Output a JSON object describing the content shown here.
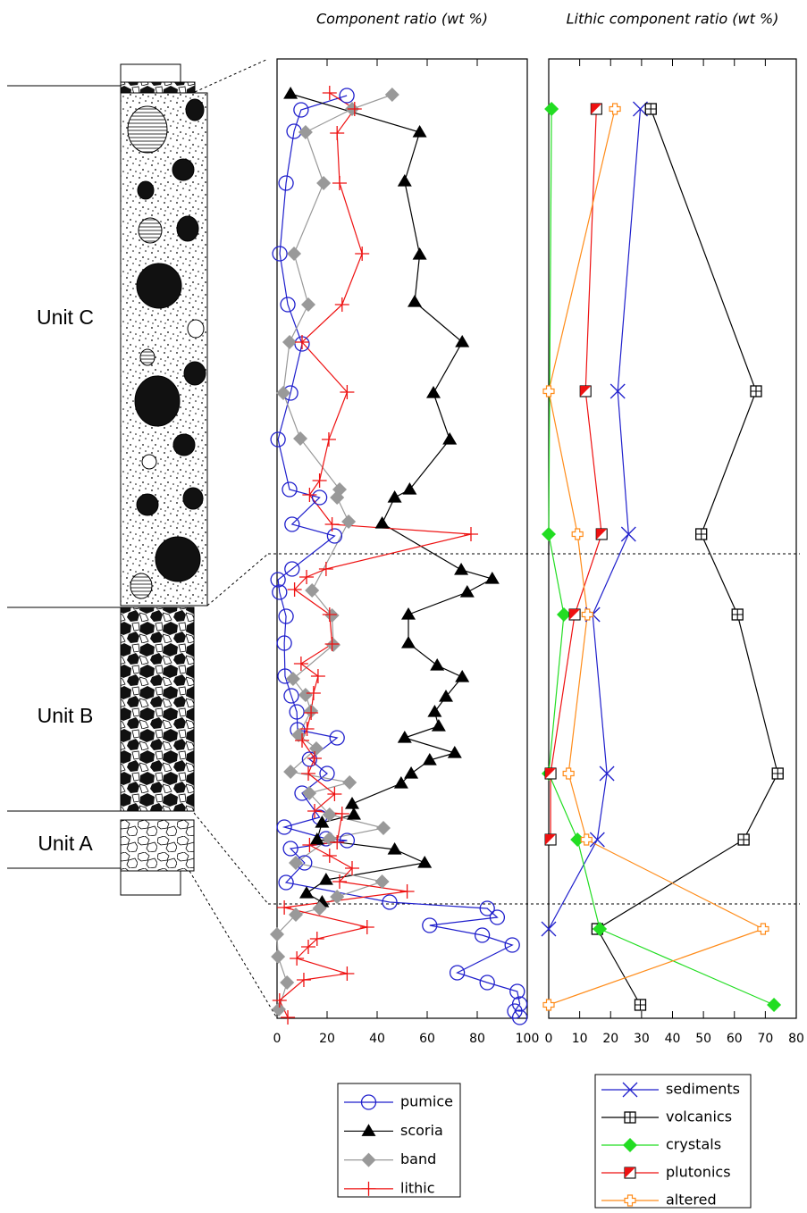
{
  "column": {
    "units": [
      "Unit C",
      "Unit B",
      "Unit A"
    ]
  },
  "chart_data": [
    {
      "type": "line",
      "title": "Component ratio (wt %)",
      "xlim": [
        0,
        100
      ],
      "xticks": [
        0,
        20,
        40,
        60,
        80,
        100
      ],
      "ylim": [
        0,
        107.4
      ],
      "series": [
        {
          "name": "pumice",
          "color": "#1f1fcc",
          "marker": "circle",
          "values": [
            27.9,
            9.6,
            6.8,
            3.6,
            1.1,
            4.3,
            10,
            5.4,
            0.4,
            5,
            17,
            6,
            23,
            6,
            0.4,
            1,
            3.6,
            2.9,
            3.2,
            5.7,
            7.9,
            8.2,
            24,
            13,
            20,
            10,
            17,
            2.9,
            19.6,
            28,
            5.4,
            11,
            3.6,
            45,
            84,
            88,
            61,
            82,
            94,
            72,
            84,
            96,
            97,
            95,
            97
          ],
          "y": [
            4.1,
            5.7,
            8.1,
            13.9,
            21.8,
            27.5,
            31.9,
            37.4,
            42.6,
            48.2,
            49.1,
            52.1,
            53.4,
            57.1,
            58.3,
            59.7,
            62.4,
            65.4,
            69.1,
            71.3,
            73.1,
            75.1,
            76,
            78.4,
            80,
            82.2,
            84.9,
            86,
            87.3,
            87.5,
            88.4,
            90,
            92.2,
            94.4,
            95.1,
            96.1,
            97,
            98.1,
            99.2,
            102.3,
            103.4,
            104.4,
            105.8,
            106.6,
            107.3
          ]
        },
        {
          "name": "scoria",
          "color": "#000000",
          "marker": "triangle",
          "values": [
            5.4,
            57,
            51,
            57,
            55,
            74,
            62.5,
            69,
            53,
            47,
            42,
            73.6,
            86,
            76,
            52.5,
            52.5,
            64,
            74,
            67.5,
            63,
            64.6,
            51,
            71,
            61,
            53.6,
            49.6,
            30,
            30.7,
            18,
            16,
            47,
            59,
            19.6,
            11.8,
            18
          ],
          "y": [
            3.9,
            8.2,
            13.7,
            21.9,
            27.2,
            31.7,
            37.4,
            42.6,
            48.2,
            49.1,
            52,
            57.2,
            58.2,
            59.7,
            62.2,
            65.4,
            67.9,
            69.2,
            71.4,
            73.1,
            74.7,
            76,
            77.7,
            78.5,
            80,
            81.1,
            83.4,
            84.6,
            85.5,
            87.4,
            88.5,
            90,
            91.9,
            93.4,
            94.4
          ]
        },
        {
          "name": "band",
          "color": "#999999",
          "marker": "diamond",
          "values": [
            46,
            30,
            11.4,
            18.6,
            6.8,
            12.5,
            5,
            2.5,
            9.3,
            25,
            24,
            28.6,
            14,
            22,
            22.5,
            6.4,
            11.4,
            13.6,
            8.6,
            15.7,
            5.4,
            29,
            12.9,
            21,
            42.5,
            21,
            7.5,
            42,
            24,
            17,
            7.5,
            0,
            0.4,
            4,
            0.7
          ],
          "y": [
            4,
            5.6,
            8.2,
            13.9,
            21.8,
            27.5,
            31.7,
            37.4,
            42.5,
            48.2,
            49.1,
            51.8,
            59.5,
            62.3,
            65.6,
            69.4,
            71.2,
            73,
            75.7,
            77.2,
            79.8,
            81,
            82.2,
            84.6,
            86.1,
            87.3,
            90,
            92.1,
            93.8,
            95.1,
            95.8,
            98,
            100.5,
            103.4,
            106.4
          ]
        },
        {
          "name": "lithic",
          "color": "#ee1111",
          "marker": "plus",
          "values": [
            21,
            31,
            24,
            25,
            34,
            26,
            10,
            28,
            20.7,
            17,
            13,
            22,
            77.5,
            19.6,
            11.8,
            7,
            21,
            22,
            9.6,
            16.4,
            14.6,
            13.6,
            12,
            10,
            15,
            12.5,
            23,
            15,
            26,
            24,
            13,
            21,
            30,
            25,
            52,
            2.9,
            36,
            16,
            12.5,
            7.9,
            28,
            10.7,
            1,
            4.3
          ],
          "y": [
            3.8,
            5.6,
            8.3,
            13.9,
            21.8,
            27.5,
            31.7,
            37.3,
            42.6,
            47.2,
            48.8,
            52.1,
            53.2,
            57.1,
            58,
            59.4,
            62.2,
            65.5,
            67.7,
            69.1,
            71,
            73.2,
            75,
            76.3,
            78.3,
            80,
            82.3,
            84.2,
            84.5,
            87.7,
            88,
            89.2,
            90.6,
            92.1,
            93.2,
            95,
            97.2,
            98.5,
            99.4,
            100.7,
            102.4,
            103.1,
            105.4,
            107.3
          ]
        }
      ]
    },
    {
      "type": "line",
      "title": "Lithic component ratio (wt %)",
      "xlim": [
        0,
        80
      ],
      "xticks": [
        0,
        10,
        20,
        30,
        40,
        50,
        60,
        70,
        80
      ],
      "ylim": [
        0,
        107.4
      ],
      "series": [
        {
          "name": "sediments",
          "color": "#1f1fcc",
          "marker": "x",
          "values": [
            29.6,
            22.3,
            25.8,
            14.2,
            18.8,
            15.7,
            0
          ],
          "y": [
            5.6,
            37.2,
            53.2,
            62.2,
            80,
            87.4,
            97.4
          ]
        },
        {
          "name": "volcanics",
          "color": "#000000",
          "marker": "boxplus",
          "values": [
            33,
            67,
            49.3,
            61,
            74,
            63,
            15.7,
            29.6
          ],
          "y": [
            5.6,
            37.2,
            53.2,
            62.2,
            80,
            87.4,
            97.4,
            105.9
          ]
        },
        {
          "name": "crystals",
          "color": "#22dd22",
          "marker": "diamond",
          "values": [
            0.9,
            0,
            4.9,
            0,
            9.3,
            16.5,
            72.8
          ],
          "y": [
            5.6,
            53.2,
            62.2,
            80,
            87.4,
            97.4,
            105.9
          ]
        },
        {
          "name": "plutonics",
          "color": "#ee1111",
          "marker": "halfsquare",
          "values": [
            15.4,
            11.9,
            17.1,
            8.4,
            0.6,
            0.6
          ],
          "y": [
            5.6,
            37.2,
            53.2,
            62.2,
            80,
            87.4
          ]
        },
        {
          "name": "altered",
          "color": "#ff8c1a",
          "marker": "openplus",
          "values": [
            21.4,
            0,
            9.3,
            12.5,
            6.4,
            12.2,
            69.3,
            0
          ],
          "y": [
            5.6,
            37.2,
            53.2,
            62.2,
            80,
            87.4,
            97.4,
            105.9
          ]
        }
      ]
    }
  ]
}
